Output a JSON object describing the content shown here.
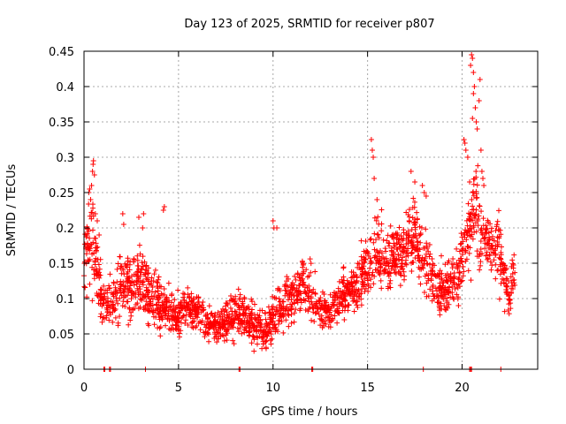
{
  "chart_data": {
    "type": "scatter",
    "title": "Day 123 of 2025, SRMTID for receiver p807",
    "xlabel": "GPS time / hours",
    "ylabel": "SRMTID / TECUs",
    "xlim": [
      0,
      24
    ],
    "ylim": [
      0,
      0.45
    ],
    "x_ticks": [
      0,
      5,
      10,
      15,
      20
    ],
    "y_ticks": [
      0,
      0.05,
      0.1,
      0.15,
      0.2,
      0.25,
      0.3,
      0.35,
      0.4,
      0.45
    ],
    "x_tick_labels": [
      "0",
      "5",
      "10",
      "15",
      "20"
    ],
    "y_tick_labels": [
      "0",
      "0.05",
      "0.1",
      "0.15",
      "0.2",
      "0.25",
      "0.3",
      "0.35",
      "0.4",
      "0.45"
    ],
    "grid": true,
    "marker": "+",
    "series_color": "#ff0000",
    "profile": [
      [
        0.0,
        0.14,
        0.05
      ],
      [
        0.3,
        0.18,
        0.08
      ],
      [
        0.6,
        0.16,
        0.06
      ],
      [
        0.9,
        0.1,
        0.04
      ],
      [
        1.2,
        0.085,
        0.03
      ],
      [
        1.6,
        0.1,
        0.04
      ],
      [
        2.0,
        0.12,
        0.05
      ],
      [
        2.5,
        0.11,
        0.045
      ],
      [
        3.0,
        0.13,
        0.05
      ],
      [
        3.5,
        0.1,
        0.04
      ],
      [
        4.0,
        0.09,
        0.035
      ],
      [
        4.5,
        0.08,
        0.03
      ],
      [
        5.0,
        0.075,
        0.03
      ],
      [
        5.5,
        0.09,
        0.035
      ],
      [
        6.0,
        0.08,
        0.03
      ],
      [
        6.5,
        0.065,
        0.025
      ],
      [
        7.0,
        0.06,
        0.025
      ],
      [
        7.5,
        0.065,
        0.03
      ],
      [
        8.0,
        0.07,
        0.035
      ],
      [
        8.5,
        0.075,
        0.035
      ],
      [
        9.0,
        0.06,
        0.03
      ],
      [
        9.5,
        0.05,
        0.025
      ],
      [
        10.0,
        0.07,
        0.035
      ],
      [
        10.5,
        0.09,
        0.04
      ],
      [
        11.0,
        0.1,
        0.035
      ],
      [
        11.5,
        0.12,
        0.04
      ],
      [
        12.0,
        0.11,
        0.04
      ],
      [
        12.5,
        0.08,
        0.03
      ],
      [
        13.0,
        0.08,
        0.03
      ],
      [
        13.5,
        0.1,
        0.035
      ],
      [
        14.0,
        0.11,
        0.035
      ],
      [
        14.5,
        0.12,
        0.04
      ],
      [
        15.0,
        0.14,
        0.05
      ],
      [
        15.5,
        0.17,
        0.05
      ],
      [
        16.0,
        0.15,
        0.05
      ],
      [
        16.5,
        0.16,
        0.05
      ],
      [
        17.0,
        0.17,
        0.05
      ],
      [
        17.5,
        0.19,
        0.05
      ],
      [
        18.0,
        0.16,
        0.05
      ],
      [
        18.5,
        0.12,
        0.04
      ],
      [
        19.0,
        0.11,
        0.04
      ],
      [
        19.5,
        0.12,
        0.04
      ],
      [
        20.0,
        0.15,
        0.05
      ],
      [
        20.3,
        0.19,
        0.06
      ],
      [
        20.7,
        0.22,
        0.08
      ],
      [
        21.0,
        0.19,
        0.06
      ],
      [
        21.5,
        0.18,
        0.05
      ],
      [
        22.0,
        0.16,
        0.05
      ],
      [
        22.5,
        0.1,
        0.03
      ],
      [
        22.8,
        0.14,
        0.04
      ]
    ],
    "spikes": [
      [
        0.15,
        0.19
      ],
      [
        0.25,
        0.25
      ],
      [
        0.3,
        0.255
      ],
      [
        0.35,
        0.24
      ],
      [
        0.4,
        0.26
      ],
      [
        0.45,
        0.28
      ],
      [
        0.48,
        0.29
      ],
      [
        0.5,
        0.295
      ],
      [
        0.55,
        0.275
      ],
      [
        0.6,
        0.22
      ],
      [
        0.7,
        0.21
      ],
      [
        0.8,
        0.19
      ],
      [
        2.05,
        0.22
      ],
      [
        2.1,
        0.205
      ],
      [
        2.9,
        0.215
      ],
      [
        3.1,
        0.2
      ],
      [
        3.15,
        0.22
      ],
      [
        4.2,
        0.225
      ],
      [
        4.25,
        0.23
      ],
      [
        10.0,
        0.21
      ],
      [
        10.05,
        0.2
      ],
      [
        10.2,
        0.2
      ],
      [
        15.2,
        0.325
      ],
      [
        15.25,
        0.31
      ],
      [
        15.3,
        0.3
      ],
      [
        15.35,
        0.27
      ],
      [
        15.5,
        0.24
      ],
      [
        17.3,
        0.28
      ],
      [
        17.5,
        0.265
      ],
      [
        17.9,
        0.26
      ],
      [
        18.0,
        0.25
      ],
      [
        18.1,
        0.245
      ],
      [
        20.1,
        0.325
      ],
      [
        20.15,
        0.32
      ],
      [
        20.2,
        0.31
      ],
      [
        20.3,
        0.3
      ],
      [
        20.4,
        0.265
      ],
      [
        20.45,
        0.43
      ],
      [
        20.5,
        0.445
      ],
      [
        20.55,
        0.44
      ],
      [
        20.6,
        0.42
      ],
      [
        20.65,
        0.4
      ],
      [
        20.6,
        0.39
      ],
      [
        20.7,
        0.37
      ],
      [
        20.55,
        0.355
      ],
      [
        20.75,
        0.35
      ],
      [
        20.8,
        0.34
      ],
      [
        20.9,
        0.38
      ],
      [
        20.95,
        0.41
      ],
      [
        21.0,
        0.31
      ],
      [
        21.05,
        0.28
      ],
      [
        21.1,
        0.27
      ],
      [
        21.15,
        0.26
      ]
    ],
    "baseline_markers": [
      1.05,
      1.1,
      1.35,
      1.4,
      3.25,
      8.2,
      8.25,
      12.05,
      12.1,
      17.95,
      20.4,
      20.45,
      20.5,
      22.05
    ],
    "point_count": 2200,
    "seed": 807123
  }
}
